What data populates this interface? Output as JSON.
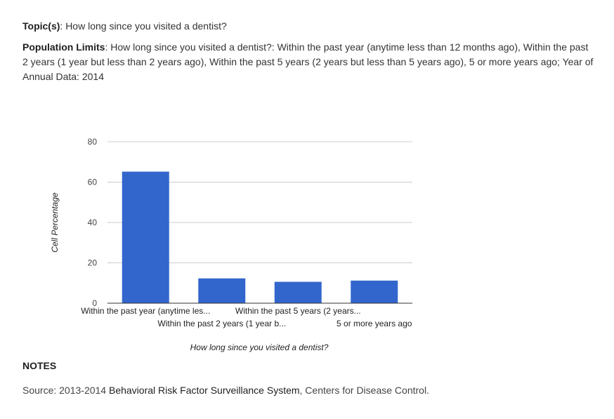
{
  "topic": {
    "label": "Topic(s)",
    "sep": ": ",
    "value": "How long since you visited a dentist?"
  },
  "limits": {
    "label": "Population Limits",
    "sep": ": ",
    "value": "How long since you visited a dentist?: Within the past year (anytime less than 12 months ago), Within the past 2 years (1 year but less than 2 years ago), Within the past 5 years (2 years but less than 5 years ago), 5 or more years ago; Year of Annual Data: 2014"
  },
  "notes": {
    "heading": "NOTES"
  },
  "source": {
    "prefix": "Source: 2013-2014 ",
    "org": "Behavioral Risk Factor Surveillance System",
    "suffix": ", Centers for Disease Control."
  },
  "chart_data": {
    "type": "bar",
    "categories": [
      "Within the past year (anytime les...",
      "Within the past 2 years (1 year b...",
      "Within the past 5 years (2 years...",
      "5 or more years ago"
    ],
    "values": [
      65.2,
      12.3,
      10.6,
      11.2
    ],
    "xlabel": "How long since you visited a dentist?",
    "ylabel": "Cell Percentage",
    "ylim": [
      0,
      80
    ],
    "yticks": [
      0,
      20,
      40,
      60,
      80
    ],
    "grid": true,
    "bar_color": "#3366cc"
  }
}
